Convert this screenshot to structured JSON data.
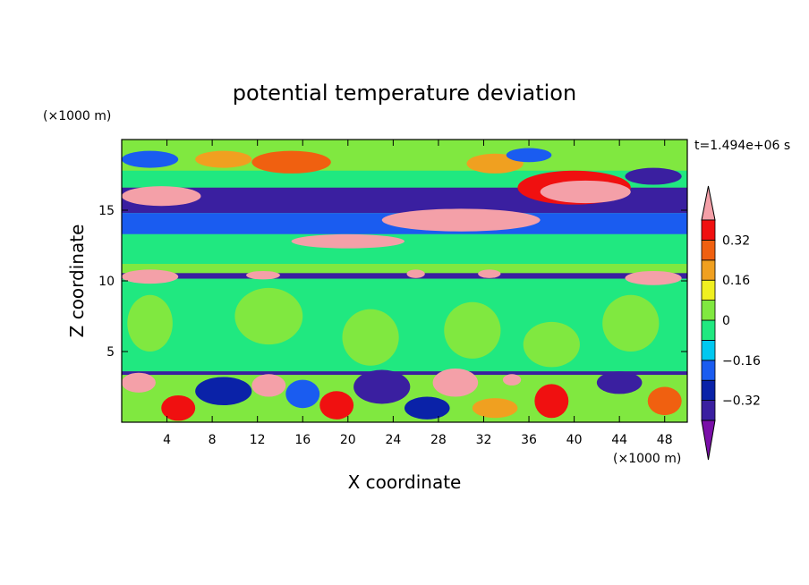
{
  "chart_data": {
    "type": "heatmap",
    "title": "potential temperature deviation",
    "xlabel": "X coordinate",
    "ylabel": "Z coordinate",
    "x_unit_label": "(×1000 m)",
    "y_unit_label": "(×1000 m)",
    "time_label": "t=1.494e+06 s",
    "xlim": [
      0,
      50
    ],
    "ylim": [
      0,
      20
    ],
    "x_ticks": [
      4,
      8,
      12,
      16,
      20,
      24,
      28,
      32,
      36,
      40,
      44,
      48
    ],
    "y_ticks": [
      5,
      10,
      15
    ],
    "colorbar": {
      "levels": [
        -0.48,
        -0.4,
        -0.32,
        -0.24,
        -0.16,
        -0.08,
        0,
        0.08,
        0.16,
        0.24,
        0.32,
        0.4
      ],
      "colors": [
        "#7a0fa8",
        "#3a1fa0",
        "#0a22a8",
        "#1a5cf0",
        "#00c8f0",
        "#20e880",
        "#80e840",
        "#f0f020",
        "#f0a020",
        "#f06010",
        "#f01010",
        "#f4a0a8"
      ],
      "labels": [
        "0.32",
        "0.16",
        "0",
        "−0.16",
        "−0.32"
      ],
      "label_values": [
        0.32,
        0.16,
        0,
        -0.16,
        -0.32
      ],
      "extend": "both"
    },
    "field": {
      "background": 0.0,
      "bands": [
        {
          "z": [
            17.8,
            19.9
          ],
          "value": 0.0
        },
        {
          "z": [
            16.6,
            17.8
          ],
          "value": -0.08
        },
        {
          "z": [
            14.8,
            16.6
          ],
          "value": -0.4
        },
        {
          "z": [
            13.3,
            14.8
          ],
          "value": -0.24
        },
        {
          "z": [
            11.2,
            13.3
          ],
          "value": -0.08
        },
        {
          "z": [
            10.7,
            11.2
          ],
          "value": 0.0
        },
        {
          "z": [
            10.15,
            10.55
          ],
          "value": -0.4
        },
        {
          "z": [
            9.4,
            10.15
          ],
          "value": -0.08
        },
        {
          "z": [
            3.6,
            9.4
          ],
          "value": -0.04
        },
        {
          "z": [
            3.35,
            3.6
          ],
          "value": -0.4
        }
      ],
      "blobs": [
        {
          "x": 3.5,
          "z": 16.0,
          "rx": 3.5,
          "rz": 0.7,
          "value": 0.45
        },
        {
          "x": 9.0,
          "z": 18.6,
          "rx": 2.5,
          "rz": 0.6,
          "value": 0.16
        },
        {
          "x": 15.0,
          "z": 18.4,
          "rx": 3.5,
          "rz": 0.8,
          "value": 0.24
        },
        {
          "x": 33.0,
          "z": 18.3,
          "rx": 2.5,
          "rz": 0.7,
          "value": 0.16
        },
        {
          "x": 40.0,
          "z": 16.6,
          "rx": 5.0,
          "rz": 1.2,
          "value": 0.32
        },
        {
          "x": 41.0,
          "z": 16.3,
          "rx": 4.0,
          "rz": 0.8,
          "value": 0.45
        },
        {
          "x": 30.0,
          "z": 14.3,
          "rx": 7.0,
          "rz": 0.8,
          "value": 0.45
        },
        {
          "x": 20.0,
          "z": 12.8,
          "rx": 5.0,
          "rz": 0.5,
          "value": 0.45
        },
        {
          "x": 47.0,
          "z": 17.4,
          "rx": 2.5,
          "rz": 0.6,
          "value": -0.4
        },
        {
          "x": 2.5,
          "z": 18.6,
          "rx": 2.5,
          "rz": 0.6,
          "value": -0.24
        },
        {
          "x": 36.0,
          "z": 18.9,
          "rx": 2.0,
          "rz": 0.5,
          "value": -0.24
        },
        {
          "x": 2.5,
          "z": 10.3,
          "rx": 2.5,
          "rz": 0.5,
          "value": 0.45
        },
        {
          "x": 12.5,
          "z": 10.4,
          "rx": 1.5,
          "rz": 0.3,
          "value": 0.45
        },
        {
          "x": 47.0,
          "z": 10.2,
          "rx": 2.5,
          "rz": 0.5,
          "value": 0.45
        },
        {
          "x": 32.5,
          "z": 10.5,
          "rx": 1.0,
          "rz": 0.3,
          "value": 0.45
        },
        {
          "x": 26.0,
          "z": 10.5,
          "rx": 0.8,
          "rz": 0.3,
          "value": 0.45
        },
        {
          "x": 2.5,
          "z": 7.0,
          "rx": 2.0,
          "rz": 2.0,
          "value": 0.0
        },
        {
          "x": 13.0,
          "z": 7.5,
          "rx": 3.0,
          "rz": 2.0,
          "value": 0.0
        },
        {
          "x": 22.0,
          "z": 6.0,
          "rx": 2.5,
          "rz": 2.0,
          "value": 0.0
        },
        {
          "x": 31.0,
          "z": 6.5,
          "rx": 2.5,
          "rz": 2.0,
          "value": 0.0
        },
        {
          "x": 38.0,
          "z": 5.5,
          "rx": 2.5,
          "rz": 1.6,
          "value": 0.0
        },
        {
          "x": 45.0,
          "z": 7.0,
          "rx": 2.5,
          "rz": 2.0,
          "value": 0.0
        },
        {
          "x": 29.5,
          "z": 2.8,
          "rx": 2.0,
          "rz": 1.0,
          "value": 0.45
        },
        {
          "x": 13.0,
          "z": 2.6,
          "rx": 1.5,
          "rz": 0.8,
          "value": 0.45
        },
        {
          "x": 1.5,
          "z": 2.8,
          "rx": 1.5,
          "rz": 0.7,
          "value": 0.45
        },
        {
          "x": 34.5,
          "z": 3.0,
          "rx": 0.8,
          "rz": 0.4,
          "value": 0.45
        },
        {
          "x": 23.0,
          "z": 2.5,
          "rx": 2.5,
          "rz": 1.2,
          "value": -0.4
        },
        {
          "x": 9.0,
          "z": 2.2,
          "rx": 2.5,
          "rz": 1.0,
          "value": -0.32
        },
        {
          "x": 44.0,
          "z": 2.8,
          "rx": 2.0,
          "rz": 0.8,
          "value": -0.4
        },
        {
          "x": 38.0,
          "z": 1.5,
          "rx": 1.5,
          "rz": 1.2,
          "value": 0.32
        },
        {
          "x": 19.0,
          "z": 1.2,
          "rx": 1.5,
          "rz": 1.0,
          "value": 0.32
        },
        {
          "x": 5.0,
          "z": 1.0,
          "rx": 1.5,
          "rz": 0.9,
          "value": 0.32
        },
        {
          "x": 27.0,
          "z": 1.0,
          "rx": 2.0,
          "rz": 0.8,
          "value": -0.32
        },
        {
          "x": 48.0,
          "z": 1.5,
          "rx": 1.5,
          "rz": 1.0,
          "value": 0.24
        },
        {
          "x": 16.0,
          "z": 2.0,
          "rx": 1.5,
          "rz": 1.0,
          "value": -0.24
        },
        {
          "x": 33.0,
          "z": 1.0,
          "rx": 2.0,
          "rz": 0.7,
          "value": 0.16
        }
      ]
    }
  }
}
